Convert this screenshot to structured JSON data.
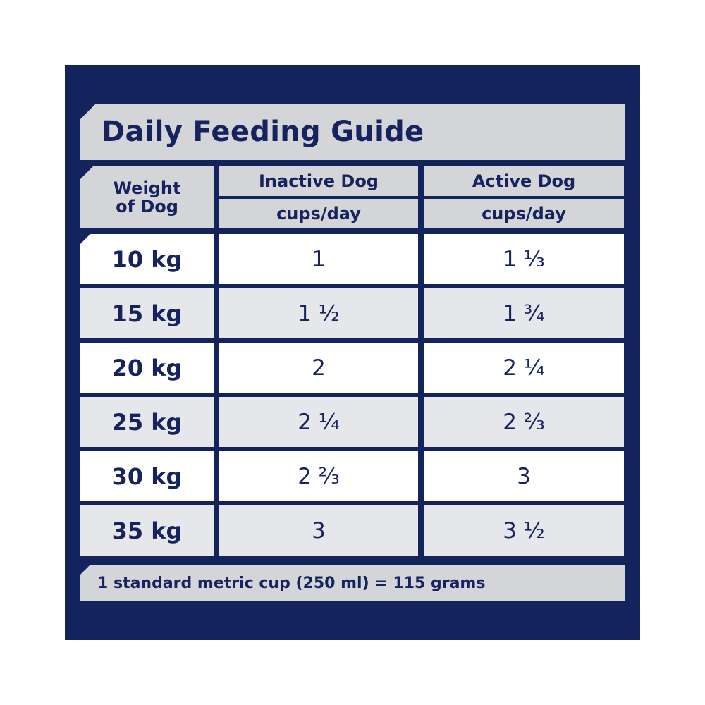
{
  "title": "Daily Feeding Guide",
  "headers": {
    "weight": [
      "Weight",
      "of Dog"
    ],
    "inactive": "Inactive Dog",
    "active": "Active Dog",
    "unit_inactive": "cups/day",
    "unit_active": "cups/day"
  },
  "rows": [
    {
      "weight": "10 kg",
      "inactive": "1",
      "active": "1 ⅓"
    },
    {
      "weight": "15 kg",
      "inactive": "1 ½",
      "active": "1 ¾"
    },
    {
      "weight": "20 kg",
      "inactive": "2",
      "active": "2 ¼"
    },
    {
      "weight": "25 kg",
      "inactive": "2 ¼",
      "active": "2 ⅔"
    },
    {
      "weight": "30 kg",
      "inactive": "2 ⅔",
      "active": "3"
    },
    {
      "weight": "35 kg",
      "inactive": "3",
      "active": "3 ½"
    }
  ],
  "footer": "1 standard metric cup (250 ml) = 115 grams",
  "colors": {
    "navy": "#13235c",
    "header_grey": "#d4d5d9",
    "row_grey": "#e6e7eb",
    "row_white": "#ffffff"
  }
}
